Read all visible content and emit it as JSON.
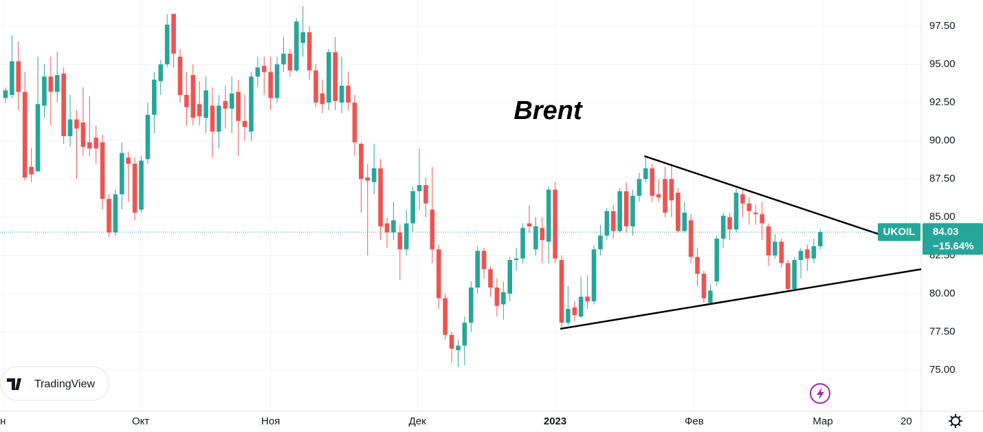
{
  "chart_data": {
    "type": "candlestick",
    "title": "Brent",
    "open": [
      92.8,
      93.0,
      95.2,
      93.2,
      88.3,
      88.0,
      92.3,
      94.2,
      93.2,
      94.4,
      90.3,
      91.4,
      91.2,
      89.9,
      90.2,
      89.9,
      86.2,
      84.0,
      86.5,
      88.9,
      88.5,
      85.5,
      88.8,
      91.7,
      93.9,
      95.0,
      98.3,
      95.5,
      93.0,
      94.3,
      92.4,
      91.5,
      92.3,
      90.6,
      92.6,
      92.1,
      93.2,
      91.3,
      90.6,
      94.2,
      94.9,
      94.5,
      92.8,
      95.0,
      95.7,
      94.6,
      96.4,
      97.1,
      94.6,
      93.1,
      92.5,
      95.8,
      92.5,
      93.6,
      92.5,
      89.8,
      87.6,
      87.3,
      88.2,
      84.6,
      84.0,
      84.0,
      82.9,
      84.6,
      86.7,
      87.1,
      85.5,
      82.9,
      79.7,
      77.3,
      76.3,
      76.6,
      78.1,
      80.4,
      82.8,
      81.6,
      80.4,
      79.3,
      80.0,
      82.2,
      82.3,
      84.6,
      82.9,
      84.3,
      83.4,
      86.8,
      82.2,
      78.1,
      79.1,
      78.5,
      79.8,
      79.5,
      82.9,
      83.8,
      85.4,
      84.1,
      86.7,
      84.4,
      86.4,
      87.5,
      88.2,
      86.5,
      87.5,
      87.5,
      86.6,
      84.1,
      84.8,
      82.4,
      81.3,
      79.4,
      80.8,
      83.6,
      85.0,
      84.2,
      86.5,
      85.9,
      85.3,
      85.2,
      84.4,
      82.5,
      83.4,
      82.0,
      80.3,
      82.2,
      82.9,
      82.3,
      83.1
    ],
    "high": [
      93.5,
      96.9,
      96.5,
      94.5,
      89.5,
      95.5,
      95.0,
      95.5,
      95.8,
      94.8,
      93.0,
      92.0,
      93.5,
      92.9,
      91.0,
      90.4,
      86.5,
      86.8,
      89.9,
      89.3,
      88.9,
      89.0,
      92.5,
      94.5,
      95.3,
      98.3,
      98.3,
      96.0,
      94.5,
      95.0,
      93.9,
      94.2,
      93.5,
      93.0,
      93.6,
      94.2,
      94.0,
      93.0,
      94.5,
      95.5,
      95.5,
      95.5,
      95.5,
      96.8,
      96.0,
      98.0,
      98.8,
      97.5,
      95.0,
      94.0,
      96.0,
      96.8,
      95.5,
      94.5,
      93.0,
      89.9,
      88.5,
      89.8,
      88.8,
      85.0,
      86.0,
      84.5,
      85.5,
      87.0,
      89.5,
      87.6,
      88.3,
      83.2,
      80.0,
      77.5,
      77.0,
      78.5,
      80.8,
      83.1,
      83.0,
      81.8,
      81.0,
      80.8,
      82.4,
      83.0,
      84.6,
      85.8,
      85.0,
      85.0,
      87.0,
      87.3,
      82.5,
      80.5,
      79.5,
      81.1,
      81.2,
      83.2,
      84.5,
      85.6,
      85.8,
      86.9,
      87.3,
      86.8,
      87.9,
      89.0,
      88.5,
      87.5,
      88.3,
      88.5,
      86.9,
      86.0,
      85.2,
      83.0,
      81.5,
      80.6,
      83.8,
      85.3,
      85.3,
      86.9,
      86.8,
      86.3,
      85.8,
      86.0,
      84.6,
      83.9,
      83.6,
      82.2,
      82.4,
      83.0,
      83.2,
      83.6,
      84.2
    ],
    "low": [
      92.5,
      92.8,
      92.0,
      87.4,
      87.3,
      88.0,
      91.5,
      91.0,
      92.5,
      89.8,
      89.6,
      87.5,
      89.0,
      89.0,
      88.5,
      85.5,
      83.7,
      83.8,
      85.5,
      86.0,
      84.8,
      85.3,
      88.5,
      90.5,
      93.0,
      94.8,
      94.8,
      92.5,
      91.0,
      91.0,
      91.0,
      90.5,
      88.9,
      89.5,
      90.8,
      90.5,
      89.0,
      90.0,
      90.0,
      93.5,
      93.0,
      92.0,
      92.5,
      94.5,
      94.2,
      94.5,
      95.5,
      94.0,
      92.2,
      91.8,
      92.0,
      92.0,
      91.8,
      92.0,
      89.0,
      85.3,
      82.5,
      86.5,
      83.5,
      83.0,
      83.5,
      80.9,
      82.5,
      84.0,
      85.5,
      85.0,
      82.0,
      79.0,
      77.0,
      75.5,
      75.2,
      75.3,
      77.5,
      80.0,
      81.0,
      79.8,
      78.5,
      78.3,
      79.5,
      81.5,
      82.0,
      84.0,
      82.5,
      82.0,
      82.0,
      82.0,
      77.8,
      77.9,
      78.2,
      78.4,
      79.0,
      79.3,
      82.5,
      83.5,
      83.6,
      84.0,
      84.0,
      83.8,
      86.0,
      87.3,
      86.0,
      86.0,
      85.0,
      85.0,
      84.0,
      84.0,
      82.0,
      80.5,
      79.4,
      79.3,
      80.5,
      83.0,
      83.5,
      84.0,
      85.0,
      84.5,
      84.5,
      83.5,
      81.8,
      82.3,
      81.7,
      80.1,
      80.2,
      81.0,
      81.5,
      82.0,
      82.9
    ],
    "close": [
      93.3,
      95.2,
      93.2,
      87.6,
      87.8,
      92.4,
      94.2,
      93.2,
      94.3,
      90.3,
      91.4,
      90.8,
      89.6,
      89.5,
      89.5,
      86.2,
      84.0,
      86.5,
      89.2,
      88.5,
      85.3,
      88.7,
      91.7,
      94.0,
      95.0,
      97.6,
      95.7,
      93.0,
      92.2,
      91.5,
      91.6,
      93.3,
      90.6,
      92.3,
      92.1,
      93.1,
      91.3,
      90.9,
      94.2,
      94.8,
      94.5,
      92.8,
      95.0,
      95.7,
      94.6,
      97.8,
      97.1,
      94.6,
      92.5,
      92.4,
      95.8,
      92.6,
      93.6,
      92.5,
      89.9,
      87.5,
      87.4,
      88.2,
      84.4,
      84.0,
      84.8,
      82.9,
      84.6,
      86.7,
      87.1,
      85.9,
      82.9,
      79.7,
      77.3,
      76.4,
      76.6,
      78.1,
      80.4,
      82.8,
      81.6,
      80.4,
      79.2,
      80.1,
      82.2,
      82.3,
      84.3,
      84.4,
      84.4,
      83.5,
      86.8,
      82.3,
      78.1,
      79.0,
      78.6,
      79.8,
      79.5,
      82.9,
      83.8,
      85.4,
      84.1,
      86.7,
      84.4,
      86.4,
      87.5,
      88.2,
      86.4,
      86.3,
      85.3,
      86.1,
      84.1,
      85.3,
      82.4,
      81.3,
      79.7,
      80.2,
      83.6,
      85.1,
      84.2,
      86.6,
      85.9,
      85.4,
      85.2,
      84.6,
      82.5,
      83.4,
      82.0,
      80.3,
      82.2,
      82.8,
      82.3,
      83.1,
      84.03
    ],
    "up_color": "#26a69a",
    "down_color": "#ef5350",
    "xlim": [
      -0.85,
      141.6
    ],
    "xticks": [
      {
        "value": -0.4,
        "label": "н"
      },
      {
        "value": 20.9,
        "label": "Окт"
      },
      {
        "value": 41.0,
        "label": "Ноя"
      },
      {
        "value": 63.7,
        "label": "Дек"
      },
      {
        "value": 85.0,
        "label": "2023"
      },
      {
        "value": 106.5,
        "label": "Фев"
      },
      {
        "value": 126.4,
        "label": "Мар"
      },
      {
        "value": 139.3,
        "label": "20"
      }
    ],
    "ylim": [
      72.3,
      99.21
    ],
    "yticks": [
      {
        "value": 75,
        "label": "75.00"
      },
      {
        "value": 77.5,
        "label": "77.50"
      },
      {
        "value": 80,
        "label": "80.00"
      },
      {
        "value": 82.5,
        "label": "82.50"
      },
      {
        "value": 85,
        "label": "85.00"
      },
      {
        "value": 87.5,
        "label": "87.50"
      },
      {
        "value": 90,
        "label": "90.00"
      },
      {
        "value": 92.5,
        "label": "92.50"
      },
      {
        "value": 95,
        "label": "95.00"
      },
      {
        "value": 97.5,
        "label": "97.50"
      }
    ],
    "grid": true,
    "trendlines": [
      {
        "x": [
          98.8,
          135.0
        ],
        "y": [
          89.0,
          83.9
        ]
      },
      {
        "x": [
          85.8,
          141.6
        ],
        "y": [
          77.7,
          81.6
        ]
      }
    ],
    "last_price": {
      "symbol": "UKOIL",
      "value": 84.03,
      "change": {
        "value": -15.64,
        "label": "−15.64%"
      }
    },
    "watermark": "TradingView"
  }
}
